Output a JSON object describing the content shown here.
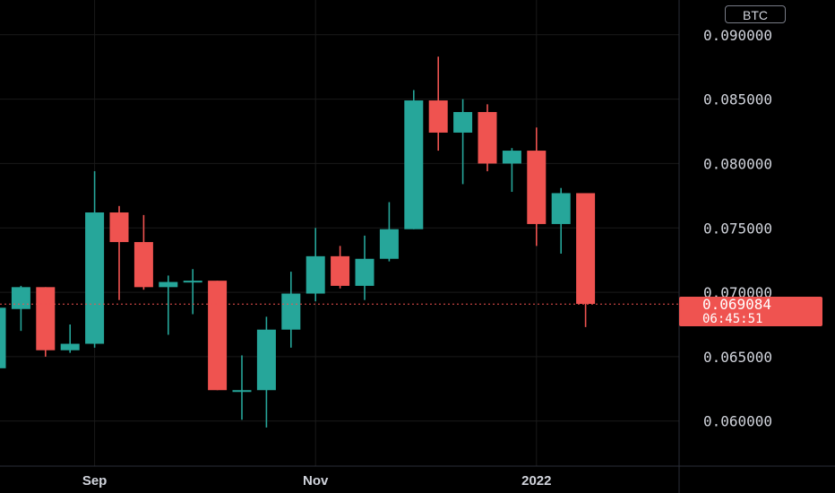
{
  "chart_data": {
    "type": "candlestick",
    "currency_badge": "BTC",
    "ylim": [
      0.0565,
      0.0927
    ],
    "y_ticks": [
      "0.060000",
      "0.065000",
      "0.070000",
      "0.075000",
      "0.080000",
      "0.085000",
      "0.090000"
    ],
    "x_ticks": [
      {
        "label": "Sep",
        "index": 4
      },
      {
        "label": "Nov",
        "index": 13
      },
      {
        "label": "2022",
        "index": 22
      }
    ],
    "candles": [
      {
        "o": 0.0641,
        "h": 0.0688,
        "l": 0.0641,
        "c": 0.0688
      },
      {
        "o": 0.0687,
        "h": 0.0705,
        "l": 0.067,
        "c": 0.0704
      },
      {
        "o": 0.0704,
        "h": 0.0704,
        "l": 0.065,
        "c": 0.0655
      },
      {
        "o": 0.0655,
        "h": 0.0675,
        "l": 0.0653,
        "c": 0.066
      },
      {
        "o": 0.066,
        "h": 0.0794,
        "l": 0.0657,
        "c": 0.0762
      },
      {
        "o": 0.0762,
        "h": 0.0767,
        "l": 0.0694,
        "c": 0.0739
      },
      {
        "o": 0.0739,
        "h": 0.076,
        "l": 0.0702,
        "c": 0.0704
      },
      {
        "o": 0.0704,
        "h": 0.0713,
        "l": 0.0667,
        "c": 0.0708
      },
      {
        "o": 0.0708,
        "h": 0.0718,
        "l": 0.0683,
        "c": 0.0709
      },
      {
        "o": 0.0709,
        "h": 0.0709,
        "l": 0.0624,
        "c": 0.0624
      },
      {
        "o": 0.0624,
        "h": 0.0651,
        "l": 0.0601,
        "c": 0.0624
      },
      {
        "o": 0.0624,
        "h": 0.0681,
        "l": 0.0595,
        "c": 0.0671
      },
      {
        "o": 0.0671,
        "h": 0.0716,
        "l": 0.0657,
        "c": 0.0699
      },
      {
        "o": 0.0699,
        "h": 0.075,
        "l": 0.0693,
        "c": 0.0728
      },
      {
        "o": 0.0728,
        "h": 0.0736,
        "l": 0.0703,
        "c": 0.0705
      },
      {
        "o": 0.0705,
        "h": 0.0744,
        "l": 0.0694,
        "c": 0.0726
      },
      {
        "o": 0.0726,
        "h": 0.077,
        "l": 0.0724,
        "c": 0.0749
      },
      {
        "o": 0.0749,
        "h": 0.0857,
        "l": 0.0749,
        "c": 0.0849
      },
      {
        "o": 0.0849,
        "h": 0.0883,
        "l": 0.081,
        "c": 0.0824
      },
      {
        "o": 0.0824,
        "h": 0.085,
        "l": 0.0784,
        "c": 0.084
      },
      {
        "o": 0.084,
        "h": 0.0846,
        "l": 0.0794,
        "c": 0.08
      },
      {
        "o": 0.08,
        "h": 0.0812,
        "l": 0.0778,
        "c": 0.081
      },
      {
        "o": 0.081,
        "h": 0.0828,
        "l": 0.0736,
        "c": 0.0753
      },
      {
        "o": 0.0753,
        "h": 0.0781,
        "l": 0.073,
        "c": 0.0777
      },
      {
        "o": 0.0777,
        "h": 0.0777,
        "l": 0.0673,
        "c": 0.0691
      }
    ],
    "last_price": {
      "value": 0.069084,
      "label": "0.069084",
      "countdown": "06:45:51"
    },
    "colors": {
      "up": "#26a69a",
      "down": "#ef5350",
      "grid": "#1a1a1a",
      "background": "#000000",
      "text": "#d1d4dc"
    }
  }
}
